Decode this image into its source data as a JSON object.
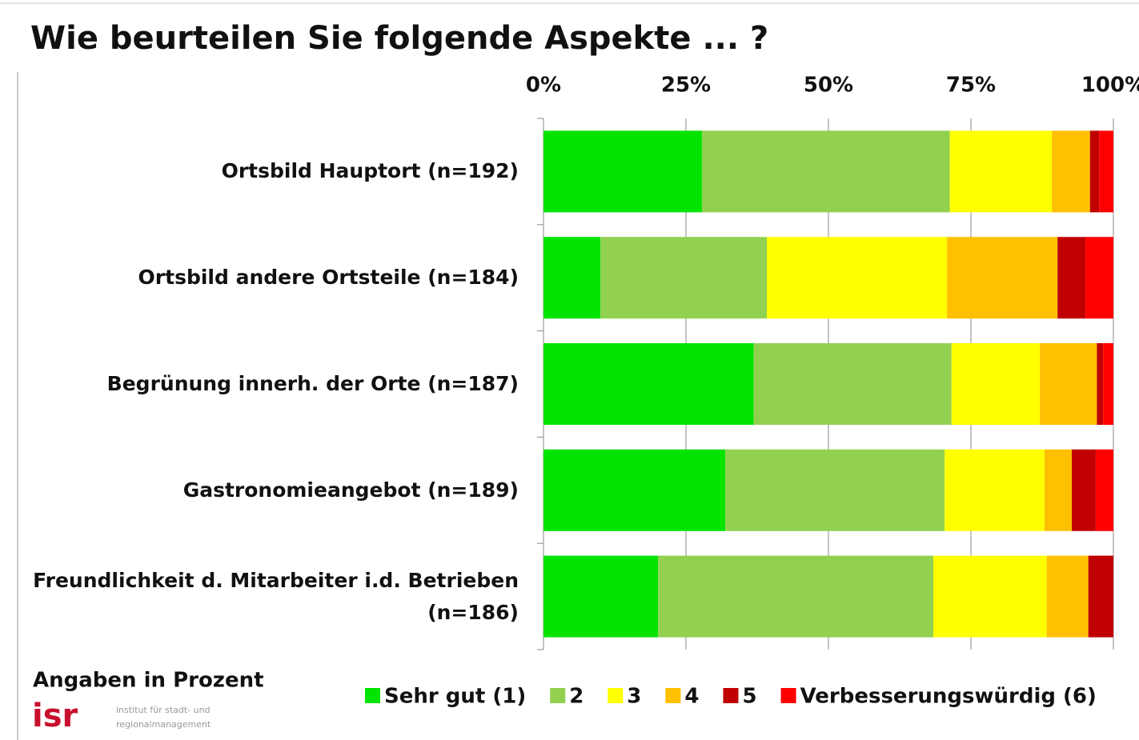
{
  "chart_data": {
    "type": "stacked-bar-horizontal",
    "title": "Wie beurteilen Sie folgende Aspekte ... ?",
    "note": "Angaben in Prozent",
    "logo": {
      "name": "isr",
      "line1": "institut für stadt- und",
      "line2": "regionalmanagement"
    },
    "categories": [
      "Ortsbild Hauptort (n=192)",
      "Ortsbild andere Ortsteile (n=184)",
      "Begrünung innerh. der Orte (n=187)",
      "Gastronomieangebot (n=189)",
      "Freundlichkeit d. Mitarbeiter i.d. Betrieben (n=186)"
    ],
    "series": [
      {
        "name": "Sehr gut (1)",
        "color": "#00e400",
        "values": [
          27.8,
          10.0,
          36.9,
          31.9,
          20.1
        ]
      },
      {
        "name": "2",
        "color": "#92d050",
        "values": [
          43.5,
          29.2,
          34.7,
          38.5,
          48.3
        ]
      },
      {
        "name": "3",
        "color": "#ffff00",
        "values": [
          17.9,
          31.6,
          15.5,
          17.5,
          19.9
        ]
      },
      {
        "name": "4",
        "color": "#ffc000",
        "values": [
          6.7,
          19.4,
          10.0,
          4.8,
          7.3
        ]
      },
      {
        "name": "5",
        "color": "#c00000",
        "values": [
          1.6,
          4.9,
          1.1,
          4.2,
          4.4
        ]
      },
      {
        "name": "Verbesserungswürdig (6)",
        "color": "#ff0000",
        "values": [
          2.5,
          4.9,
          1.8,
          3.1,
          0
        ]
      }
    ],
    "xlim": [
      0,
      100
    ],
    "xticks": [
      {
        "value": 0,
        "label": "0%"
      },
      {
        "value": 25,
        "label": "25%"
      },
      {
        "value": 50,
        "label": "50%"
      },
      {
        "value": 75,
        "label": "75%"
      },
      {
        "value": 100,
        "label": "100%"
      }
    ],
    "grid": true
  }
}
